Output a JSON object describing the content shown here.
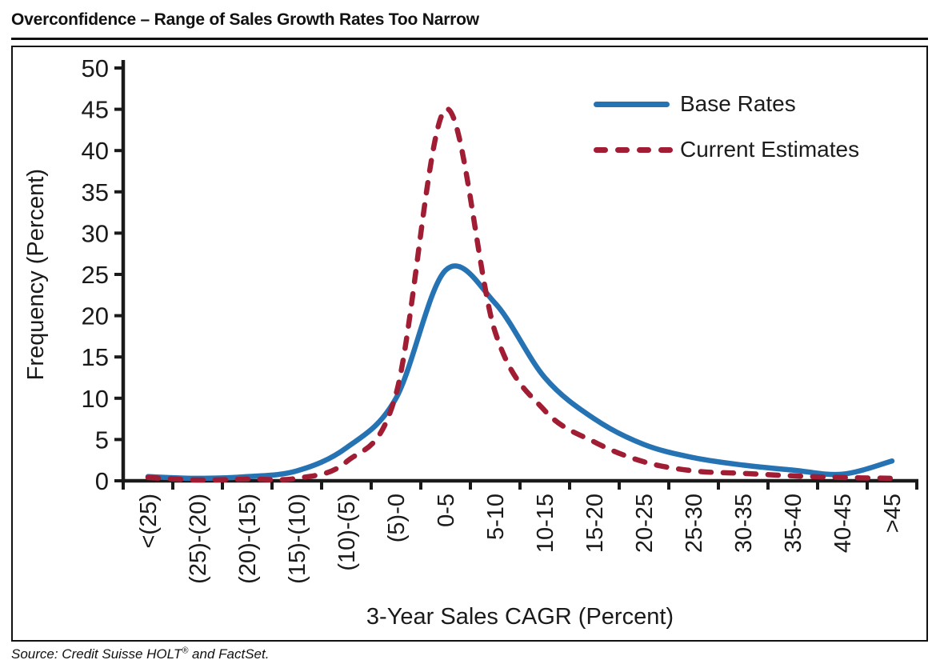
{
  "header": {
    "title": "Overconfidence – Range of Sales Growth Rates Too Narrow"
  },
  "chart_data": {
    "type": "line",
    "title": "Overconfidence – Range of Sales Growth Rates Too Narrow",
    "xlabel": "3-Year Sales CAGR (Percent)",
    "ylabel": "Frequency (Percent)",
    "ylim": [
      0,
      50
    ],
    "ytick_step": 5,
    "yticks": [
      0,
      5,
      10,
      15,
      20,
      25,
      30,
      35,
      40,
      45,
      50
    ],
    "grid": false,
    "legend_position": "top-right",
    "axis_color": "#1a1a1a",
    "categories": [
      "<(25)",
      "(25)-(20)",
      "(20)-(15)",
      "(15)-(10)",
      "(10)-(5)",
      "(5)-0",
      "0-5",
      "5-10",
      "10-15",
      "15-20",
      "20-25",
      "25-30",
      "30-35",
      "35-40",
      "40-45",
      ">45"
    ],
    "series": [
      {
        "name": "Base Rates",
        "color": "#2673B4",
        "line_style": "solid",
        "values": [
          0.5,
          0.3,
          0.5,
          1.2,
          4.0,
          10.0,
          25.5,
          21.5,
          12.5,
          7.5,
          4.4,
          2.8,
          1.9,
          1.3,
          0.8,
          2.4
        ]
      },
      {
        "name": "Current Estimates",
        "color": "#A01D33",
        "line_style": "dashed",
        "values": [
          0.4,
          0.1,
          0.2,
          0.3,
          2.3,
          10.5,
          45.0,
          18.0,
          8.5,
          4.7,
          2.3,
          1.2,
          0.9,
          0.6,
          0.4,
          0.3
        ]
      }
    ]
  },
  "footer": {
    "source_prefix": "Source: Credit Suisse HOLT",
    "source_registered": "®",
    "source_suffix": " and FactSet."
  }
}
